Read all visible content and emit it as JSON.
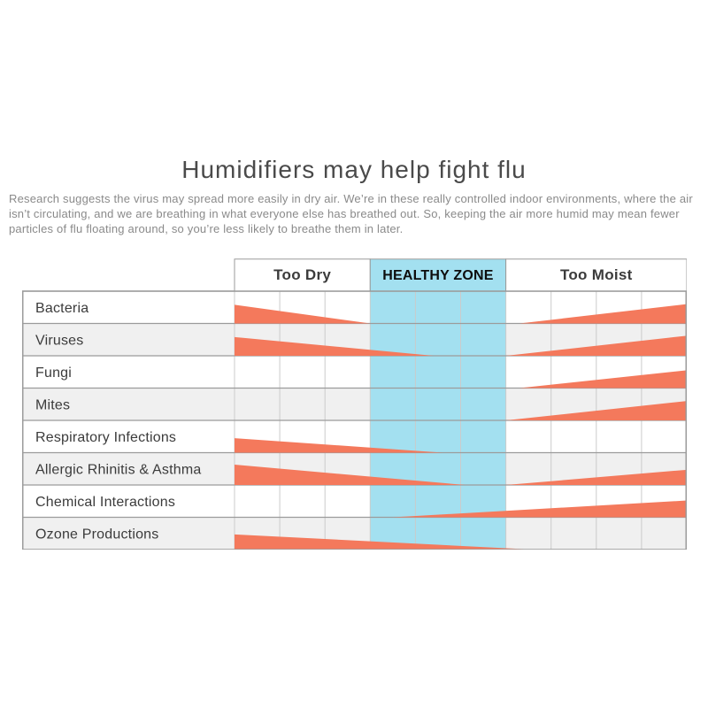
{
  "page": {
    "title": "Humidifiers may help fight flu",
    "description": "Research suggests the virus may spread more easily in dry air. We’re in these really controlled indoor environments, where the air isn’t circulating, and we are breathing in what everyone else has breathed out. So, keeping the air more humid may mean fewer particles of flu floating around, so you’re less likely to breathe them in later."
  },
  "chart_data": {
    "type": "table",
    "title": "Humidifiers may help fight flu",
    "legend_position": "top",
    "grid": true,
    "zones": [
      {
        "label": "Too Dry",
        "columns": 3,
        "highlight": false
      },
      {
        "label": "HEALTHY ZONE",
        "columns": 3,
        "highlight": true
      },
      {
        "label": "Too Moist",
        "columns": 4,
        "highlight": false
      }
    ],
    "rows": [
      {
        "label": "Bacteria",
        "wedges": [
          {
            "from": 0.0,
            "to": 0.3,
            "from_h": 0.58,
            "to_h": 0.0
          },
          {
            "from": 0.63,
            "to": 1.0,
            "from_h": 0.0,
            "to_h": 0.6
          }
        ]
      },
      {
        "label": "Viruses",
        "wedges": [
          {
            "from": 0.0,
            "to": 0.44,
            "from_h": 0.58,
            "to_h": 0.0
          },
          {
            "from": 0.6,
            "to": 1.0,
            "from_h": 0.0,
            "to_h": 0.62
          }
        ]
      },
      {
        "label": "Fungi",
        "wedges": [
          {
            "from": 0.63,
            "to": 1.0,
            "from_h": 0.0,
            "to_h": 0.55
          }
        ]
      },
      {
        "label": "Mites",
        "wedges": [
          {
            "from": 0.6,
            "to": 1.0,
            "from_h": 0.0,
            "to_h": 0.6
          }
        ]
      },
      {
        "label": "Respiratory Infections",
        "wedges": [
          {
            "from": 0.0,
            "to": 0.46,
            "from_h": 0.45,
            "to_h": 0.0
          }
        ]
      },
      {
        "label": "Allergic Rhinitis & Asthma",
        "wedges": [
          {
            "from": 0.0,
            "to": 0.51,
            "from_h": 0.63,
            "to_h": 0.0
          },
          {
            "from": 0.6,
            "to": 1.0,
            "from_h": 0.0,
            "to_h": 0.47
          }
        ]
      },
      {
        "label": "Chemical Interactions",
        "wedges": [
          {
            "from": 0.35,
            "to": 1.0,
            "from_h": 0.0,
            "to_h": 0.52
          }
        ]
      },
      {
        "label": "Ozone Productions",
        "wedges": [
          {
            "from": 0.0,
            "to": 0.66,
            "from_h": 0.47,
            "to_h": 0.0
          }
        ]
      }
    ],
    "colors": {
      "wedge": "#F4795C",
      "healthy_zone": "#A3E0F0",
      "row_alt": "#F0F0F0",
      "row_base": "#FFFFFF",
      "h_line": "#9B9B9B",
      "v_line": "#CBCBCB"
    }
  }
}
